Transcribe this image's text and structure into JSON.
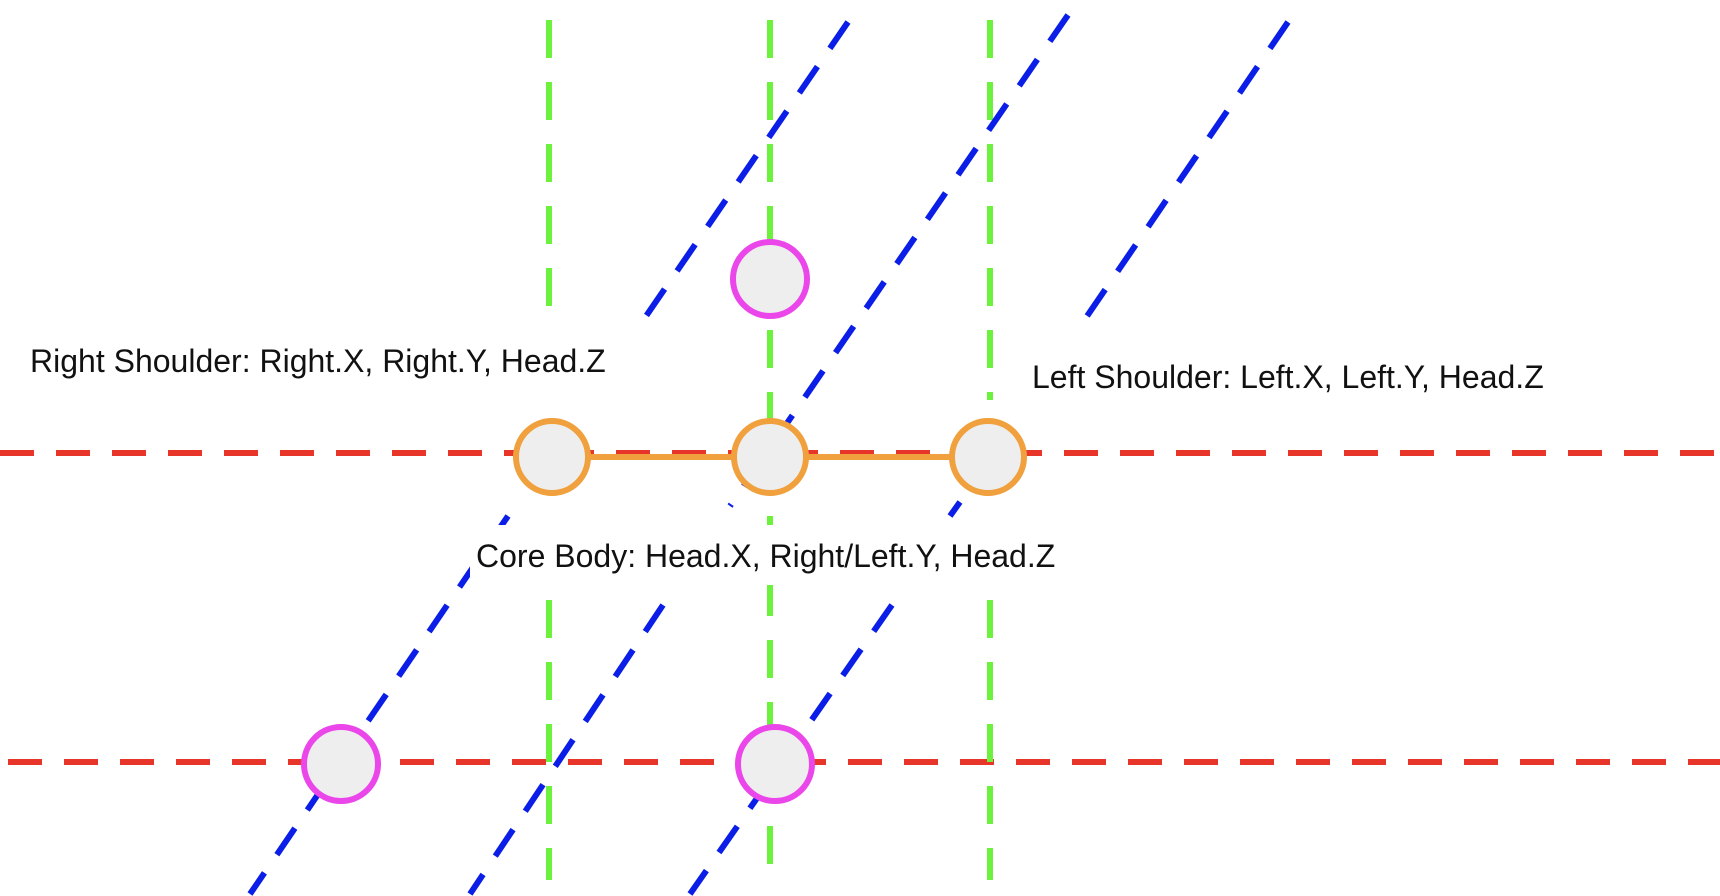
{
  "labels": {
    "right_shoulder": "Right Shoulder: Right.X, Right.Y, Head.Z",
    "left_shoulder": "Left Shoulder: Left.X, Left.Y, Head.Z",
    "core_body": "Core Body: Head.X, Right/Left.Y, Head.Z"
  },
  "colors": {
    "horizontal_guides": "#e8352a",
    "vertical_guides": "#6cf23c",
    "diagonal_guides": "#0a1ee8",
    "body_joints": "#f0a03c",
    "reference_points": "#ea46ea",
    "node_fill": "#eeeeef"
  }
}
